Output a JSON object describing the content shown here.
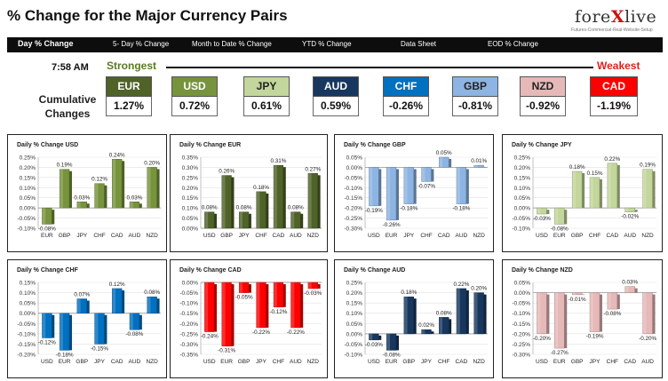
{
  "page": {
    "title": "% Change for the Major Currency Pairs",
    "logo": {
      "prefix": "fore",
      "x": "X",
      "suffix": "live",
      "tagline": "Futures-Commercial-Real-Website-Setup"
    }
  },
  "nav": {
    "items": [
      "Day % Change",
      "5- Day % Change",
      "Month to Date % Change",
      "YTD % Change",
      "Data Sheet",
      "EOD % Change"
    ]
  },
  "summary": {
    "time": "7:58 AM",
    "strongest_label": "Strongest",
    "weakest_label": "Weakest",
    "cumulative_label_1": "Cumulative",
    "cumulative_label_2": "Changes",
    "pairs": [
      {
        "name": "EUR",
        "value": "1.27%",
        "color": "#4f6228"
      },
      {
        "name": "USD",
        "value": "0.72%",
        "color": "#77933c"
      },
      {
        "name": "JPY",
        "value": "0.61%",
        "color": "#c3d69b"
      },
      {
        "name": "AUD",
        "value": "0.59%",
        "color": "#17375e"
      },
      {
        "name": "CHF",
        "value": "-0.26%",
        "color": "#0070c0"
      },
      {
        "name": "GBP",
        "value": "-0.81%",
        "color": "#8db4e2"
      },
      {
        "name": "NZD",
        "value": "-0.92%",
        "color": "#e6b9b8"
      },
      {
        "name": "CAD",
        "value": "-1.19%",
        "color": "#ff0000"
      }
    ]
  },
  "chart_data": [
    {
      "type": "bar",
      "title": "Daily % Change USD",
      "color": "#77933c",
      "categories": [
        "EUR",
        "GBP",
        "JPY",
        "CHF",
        "CAD",
        "AUD",
        "NZD"
      ],
      "values": [
        -0.08,
        0.19,
        0.03,
        0.12,
        0.24,
        0.03,
        0.2
      ],
      "labels": [
        "-0.08%",
        "0.19%",
        "0.03%",
        "0.12%",
        "0.24%",
        "0.03%",
        "0.20%"
      ],
      "ylim": [
        -0.1,
        0.25
      ],
      "ticks": [
        "0.25%",
        "0.20%",
        "0.15%",
        "0.10%",
        "0.05%",
        "0.00%",
        "-0.05%",
        "-0.10%"
      ]
    },
    {
      "type": "bar",
      "title": "Daily % Change EUR",
      "color": "#4f6228",
      "categories": [
        "USD",
        "GBP",
        "JPY",
        "CHF",
        "CAD",
        "AUD",
        "NZD"
      ],
      "values": [
        0.08,
        0.26,
        0.08,
        0.18,
        0.31,
        0.08,
        0.27
      ],
      "labels": [
        "0.08%",
        "0.26%",
        "0.08%",
        "0.18%",
        "0.31%",
        "0.08%",
        "0.27%"
      ],
      "ylim": [
        0.0,
        0.35
      ],
      "ticks": [
        "0.35%",
        "0.30%",
        "0.25%",
        "0.20%",
        "0.15%",
        "0.10%",
        "0.05%",
        "0.00%"
      ]
    },
    {
      "type": "bar",
      "title": "Daily % Change GBP",
      "color": "#8db4e2",
      "categories": [
        "USD",
        "EUR",
        "JPY",
        "CHF",
        "CAD",
        "AUD",
        "NZD"
      ],
      "values": [
        -0.19,
        -0.26,
        -0.18,
        -0.07,
        0.05,
        -0.18,
        0.01
      ],
      "labels": [
        "-0.19%",
        "-0.26%",
        "-0.18%",
        "-0.07%",
        "0.05%",
        "-0.18%",
        "0.01%"
      ],
      "ylim": [
        -0.3,
        0.05
      ],
      "ticks": [
        "0.05%",
        "0.00%",
        "-0.05%",
        "-0.10%",
        "-0.15%",
        "-0.20%",
        "-0.25%",
        "-0.30%"
      ]
    },
    {
      "type": "bar",
      "title": "Daily % Change JPY",
      "color": "#c3d69b",
      "categories": [
        "USD",
        "EUR",
        "GBP",
        "CHF",
        "CAD",
        "AUD",
        "NZD"
      ],
      "values": [
        -0.03,
        -0.08,
        0.18,
        0.15,
        0.22,
        -0.02,
        0.19
      ],
      "labels": [
        "-0.03%",
        "-0.08%",
        "0.18%",
        "0.15%",
        "0.22%",
        "-0.02%",
        "0.19%"
      ],
      "ylim": [
        -0.1,
        0.25
      ],
      "ticks": [
        "0.25%",
        "0.20%",
        "0.15%",
        "0.10%",
        "0.05%",
        "0.00%",
        "-0.05%",
        "-0.10%"
      ]
    },
    {
      "type": "bar",
      "title": "Daily % Change CHF",
      "color": "#0070c0",
      "categories": [
        "USD",
        "EUR",
        "GBP",
        "JPY",
        "CAD",
        "AUD",
        "NZD"
      ],
      "values": [
        -0.12,
        -0.18,
        0.07,
        -0.15,
        0.12,
        -0.08,
        0.08
      ],
      "labels": [
        "-0.12%",
        "-0.18%",
        "0.07%",
        "-0.15%",
        "0.12%",
        "-0.08%",
        "0.08%"
      ],
      "ylim": [
        -0.2,
        0.15
      ],
      "ticks": [
        "0.15%",
        "0.10%",
        "0.05%",
        "0.00%",
        "-0.05%",
        "-0.10%",
        "-0.15%",
        "-0.20%"
      ]
    },
    {
      "type": "bar",
      "title": "Daily % Change CAD",
      "color": "#ff0000",
      "categories": [
        "USD",
        "EUR",
        "GBP",
        "JPY",
        "CHF",
        "AUD",
        "NZD"
      ],
      "values": [
        -0.24,
        -0.31,
        -0.05,
        -0.22,
        -0.12,
        -0.22,
        -0.03
      ],
      "labels": [
        "-0.24%",
        "-0.31%",
        "-0.05%",
        "-0.22%",
        "-0.12%",
        "-0.22%",
        "-0.03%"
      ],
      "ylim": [
        -0.35,
        0.0
      ],
      "ticks": [
        "0.00%",
        "-0.05%",
        "-0.10%",
        "-0.15%",
        "-0.20%",
        "-0.25%",
        "-0.30%",
        "-0.35%"
      ]
    },
    {
      "type": "bar",
      "title": "Daily % Change AUD",
      "color": "#17375e",
      "categories": [
        "USD",
        "EUR",
        "GBP",
        "JPY",
        "CHF",
        "CAD",
        "NZD"
      ],
      "values": [
        -0.03,
        -0.08,
        0.18,
        0.02,
        0.08,
        0.22,
        0.2
      ],
      "labels": [
        "-0.03%",
        "-0.08%",
        "0.18%",
        "0.02%",
        "0.08%",
        "0.22%",
        "0.20%"
      ],
      "ylim": [
        -0.1,
        0.25
      ],
      "ticks": [
        "0.25%",
        "0.20%",
        "0.15%",
        "0.10%",
        "0.05%",
        "0.00%",
        "-0.05%",
        "-0.10%"
      ]
    },
    {
      "type": "bar",
      "title": "Daily % Change NZD",
      "color": "#e6b9b8",
      "categories": [
        "USD",
        "EUR",
        "GBP",
        "JPY",
        "CHF",
        "CAD",
        "AUD"
      ],
      "values": [
        -0.2,
        -0.27,
        -0.01,
        -0.19,
        -0.08,
        0.03,
        -0.2
      ],
      "labels": [
        "-0.20%",
        "-0.27%",
        "-0.01%",
        "-0.19%",
        "-0.08%",
        "0.03%",
        "-0.20%"
      ],
      "ylim": [
        -0.3,
        0.05
      ],
      "ticks": [
        "0.05%",
        "0.00%",
        "-0.05%",
        "-0.10%",
        "-0.15%",
        "-0.20%",
        "-0.25%",
        "-0.30%"
      ]
    }
  ]
}
